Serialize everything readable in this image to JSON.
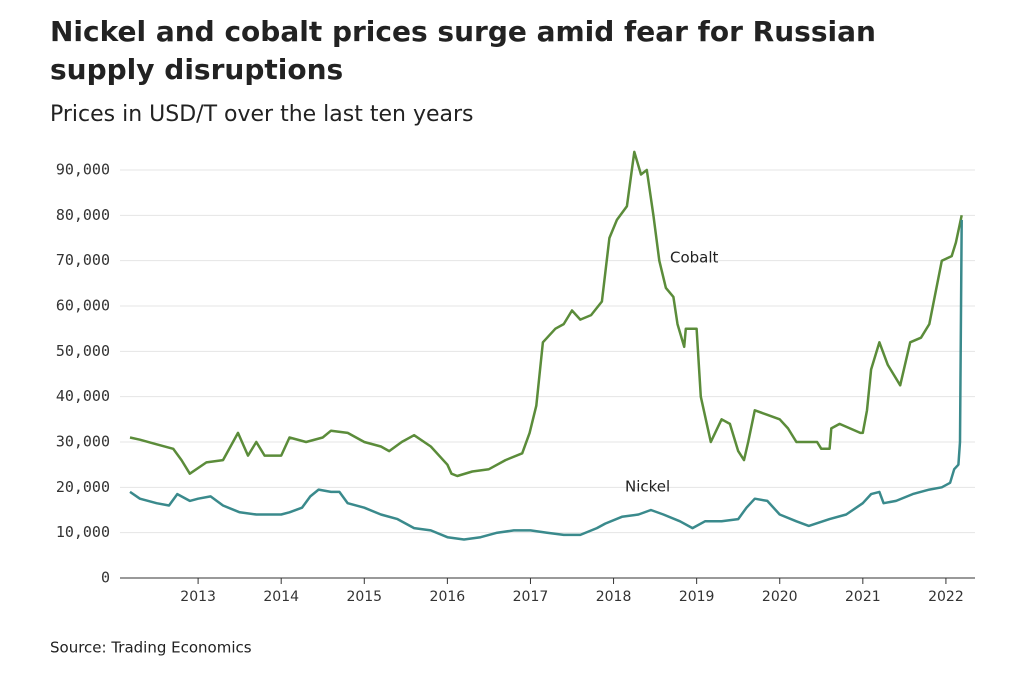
{
  "chart_data": {
    "type": "line",
    "title": "Nickel and cobalt prices surge amid fear for Russian supply disruptions",
    "subtitle": "Prices in USD/T over the last ten years",
    "source": "Source: Trading Economics",
    "xlim": [
      2012.06,
      2022.35
    ],
    "xticks": [
      2013,
      2014,
      2015,
      2016,
      2017,
      2018,
      2019,
      2020,
      2021,
      2022
    ],
    "ylim": [
      0,
      95000
    ],
    "yticks": [
      0,
      {
        "value": 10000,
        "label": "10,000"
      },
      {
        "value": 20000,
        "label": "20,000"
      },
      {
        "value": 30000,
        "label": "30,000"
      },
      {
        "value": 40000,
        "label": "40,000"
      },
      {
        "value": 50000,
        "label": "50,000"
      },
      {
        "value": 60000,
        "label": "60,000"
      },
      {
        "value": 70000,
        "label": "70,000"
      },
      {
        "value": 80000,
        "label": "80,000"
      },
      {
        "value": 90000,
        "label": "90,000"
      }
    ],
    "grid": true,
    "series": [
      {
        "name": "Cobalt",
        "color": "#5b8c3a",
        "x": [
          2012.18,
          2012.3,
          2012.5,
          2012.7,
          2012.8,
          2012.9,
          2013.1,
          2013.3,
          2013.48,
          2013.6,
          2013.7,
          2013.8,
          2014.0,
          2014.1,
          2014.3,
          2014.5,
          2014.6,
          2014.8,
          2015.0,
          2015.2,
          2015.3,
          2015.45,
          2015.6,
          2015.8,
          2016.0,
          2016.05,
          2016.12,
          2016.3,
          2016.5,
          2016.7,
          2016.9,
          2016.99,
          2017.07,
          2017.15,
          2017.3,
          2017.4,
          2017.5,
          2017.6,
          2017.73,
          2017.86,
          2017.95,
          2018.04,
          2018.16,
          2018.25,
          2018.33,
          2018.4,
          2018.48,
          2018.55,
          2018.63,
          2018.72,
          2018.77,
          2018.85,
          2018.87,
          2019.0,
          2019.05,
          2019.17,
          2019.3,
          2019.4,
          2019.5,
          2019.57,
          2019.62,
          2019.7,
          2019.85,
          2020.0,
          2020.1,
          2020.2,
          2020.45,
          2020.5,
          2020.6,
          2020.62,
          2020.72,
          2020.97,
          2021.0,
          2021.05,
          2021.1,
          2021.2,
          2021.3,
          2021.45,
          2021.57,
          2021.7,
          2021.8,
          2021.95,
          2022.07,
          2022.12,
          2022.19
        ],
        "values": [
          31000,
          30500,
          29500,
          28500,
          26000,
          23000,
          25500,
          26000,
          32000,
          27000,
          30000,
          27000,
          27000,
          31000,
          30000,
          31000,
          32500,
          32000,
          30000,
          29000,
          28000,
          30000,
          31500,
          29000,
          25000,
          23000,
          22500,
          23500,
          24000,
          26000,
          27500,
          32000,
          38000,
          52000,
          55000,
          56000,
          59000,
          57000,
          58000,
          61000,
          75000,
          79000,
          82000,
          94000,
          89000,
          90000,
          80000,
          70000,
          64000,
          62000,
          56000,
          51000,
          55000,
          55000,
          40000,
          30000,
          35000,
          34000,
          28000,
          26000,
          30000,
          37000,
          36000,
          35000,
          33000,
          30000,
          30000,
          28500,
          28500,
          33000,
          34000,
          32000,
          32000,
          37000,
          46000,
          52000,
          47000,
          42500,
          52000,
          53000,
          56000,
          70000,
          71000,
          74000,
          80000
        ]
      },
      {
        "name": "Nickel",
        "color": "#3a8a8c",
        "x": [
          2012.18,
          2012.3,
          2012.5,
          2012.65,
          2012.75,
          2012.9,
          2013.0,
          2013.15,
          2013.3,
          2013.5,
          2013.7,
          2014.0,
          2014.1,
          2014.25,
          2014.35,
          2014.45,
          2014.6,
          2014.7,
          2014.8,
          2015.0,
          2015.2,
          2015.4,
          2015.6,
          2015.8,
          2016.0,
          2016.2,
          2016.4,
          2016.6,
          2016.8,
          2017.0,
          2017.2,
          2017.4,
          2017.6,
          2017.8,
          2017.9,
          2018.1,
          2018.3,
          2018.45,
          2018.6,
          2018.8,
          2018.95,
          2019.1,
          2019.3,
          2019.5,
          2019.6,
          2019.7,
          2019.85,
          2020.0,
          2020.2,
          2020.35,
          2020.6,
          2020.8,
          2021.0,
          2021.1,
          2021.2,
          2021.25,
          2021.4,
          2021.6,
          2021.8,
          2021.95,
          2022.05,
          2022.1,
          2022.15,
          2022.17,
          2022.19
        ],
        "values": [
          19000,
          17500,
          16500,
          16000,
          18500,
          17000,
          17500,
          18000,
          16000,
          14500,
          14000,
          14000,
          14500,
          15500,
          18000,
          19500,
          19000,
          19000,
          16500,
          15500,
          14000,
          13000,
          11000,
          10500,
          9000,
          8500,
          9000,
          10000,
          10500,
          10500,
          10000,
          9500,
          9500,
          11000,
          12000,
          13500,
          14000,
          15000,
          14000,
          12500,
          11000,
          12500,
          12500,
          13000,
          15500,
          17500,
          17000,
          14000,
          12500,
          11500,
          13000,
          14000,
          16500,
          18500,
          19000,
          16500,
          17000,
          18500,
          19500,
          20000,
          21000,
          24000,
          25000,
          30000,
          79000
        ]
      }
    ]
  }
}
